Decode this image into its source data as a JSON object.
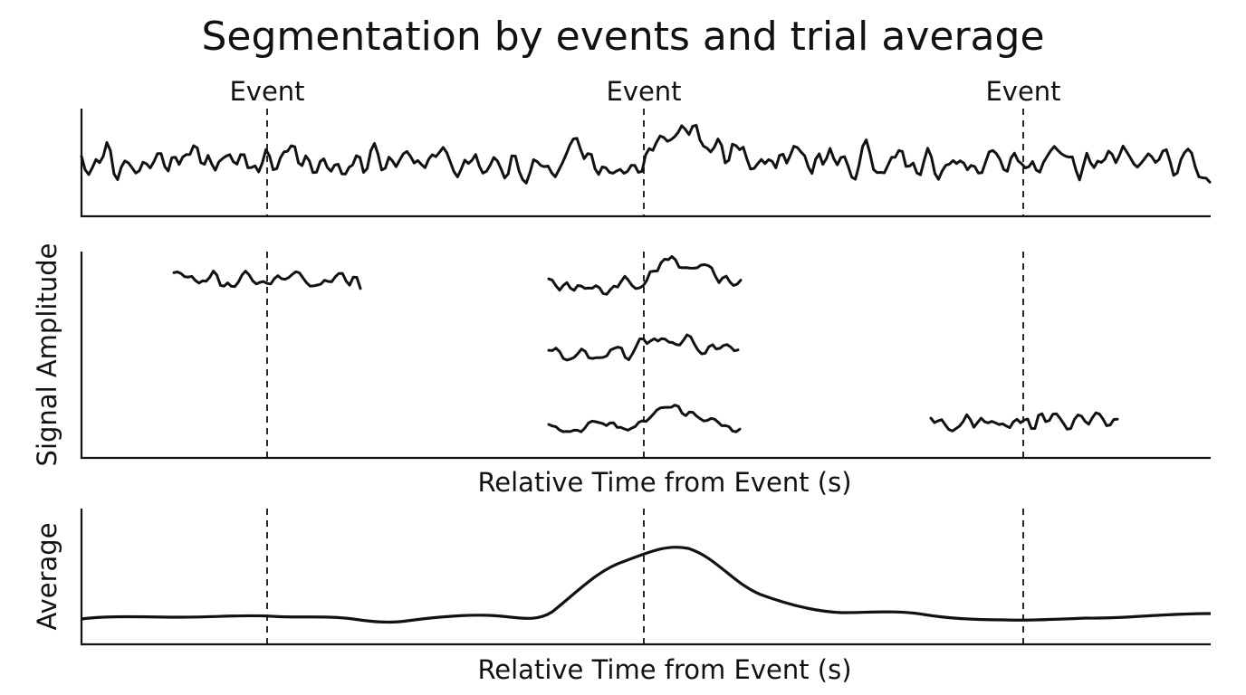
{
  "title": "Segmentation by events and trial average",
  "event_label": "Event",
  "events": [
    {
      "label": "Event"
    },
    {
      "label": "Event"
    },
    {
      "label": "Event"
    }
  ],
  "panels": {
    "continuous": {
      "ylabel": "",
      "xlabel": ""
    },
    "segments": {
      "ylabel": "Signal Amplitude",
      "xlabel": "Relative Time from Event (s)"
    },
    "average": {
      "ylabel": "Average",
      "xlabel": "Relative Time from Event (s)"
    }
  },
  "segment_counts": {
    "event_1": 1,
    "event_2": 3,
    "event_3": 1
  }
}
